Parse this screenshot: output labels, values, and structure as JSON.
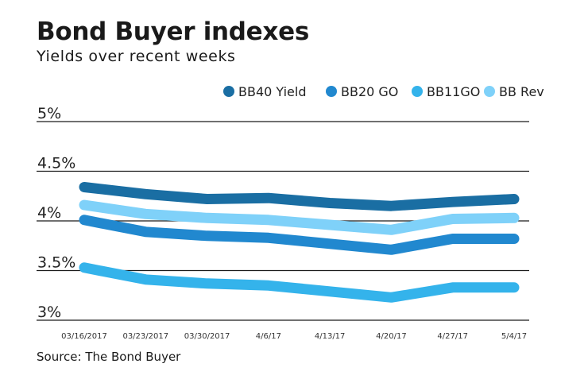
{
  "header": {
    "title": "Bond Buyer indexes",
    "subtitle": "Yields over recent weeks"
  },
  "footer": {
    "source": "Source: The Bond Buyer"
  },
  "colors": {
    "BB40 Yield": "#1a6ea3",
    "BB20 GO": "#2188cf",
    "BB11GO": "#34b3eb",
    "BB Rev": "#7fd1f9"
  },
  "chart_data": {
    "type": "line",
    "title": "Bond Buyer indexes",
    "subtitle": "Yields over recent weeks",
    "xlabel": "",
    "ylabel": "",
    "x": [
      "03/16/2017",
      "03/23/2017",
      "03/30/2017",
      "4/6/17",
      "4/13/17",
      "4/20/17",
      "4/27/17",
      "5/4/17"
    ],
    "y_ticks": [
      "5%",
      "4.5%",
      "4%",
      "3.5%",
      "3%"
    ],
    "y_tick_values": [
      5,
      4.5,
      4,
      3.5,
      3
    ],
    "ylim": [
      3,
      5
    ],
    "grid": true,
    "legend": "top-right",
    "series": [
      {
        "name": "BB40 Yield",
        "values": [
          4.34,
          4.27,
          4.22,
          4.23,
          4.18,
          4.15,
          4.19,
          4.22
        ]
      },
      {
        "name": "BB20 GO",
        "values": [
          4.01,
          3.89,
          3.85,
          3.83,
          3.77,
          3.71,
          3.82,
          3.82
        ]
      },
      {
        "name": "BB11GO",
        "values": [
          3.53,
          3.41,
          3.37,
          3.35,
          3.29,
          3.23,
          3.33,
          3.33
        ]
      },
      {
        "name": "BB Rev",
        "values": [
          4.16,
          4.07,
          4.03,
          4.01,
          3.96,
          3.91,
          4.02,
          4.03
        ]
      }
    ]
  }
}
